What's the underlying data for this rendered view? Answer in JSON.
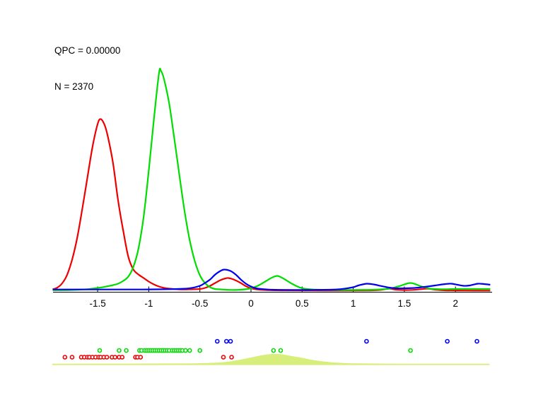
{
  "annotation": {
    "qpc_label": "QPC = 0.00000",
    "n_label": "N = 2370"
  },
  "colors": {
    "red": "#ee0000",
    "green": "#00dd00",
    "blue": "#0000f0",
    "pooled": "#d7ee7b",
    "axis": "#000000",
    "text": "#000000",
    "background": "#ffffff"
  },
  "chart_data": {
    "type": "line",
    "title": "",
    "xlabel": "",
    "ylabel": "",
    "x_range": [
      -1.94,
      2.37
    ],
    "grid": false,
    "legend": "none",
    "y_unit": "relative density height (pixels above baseline as rendered)",
    "x_axis": {
      "ticks": [
        {
          "value": -1.5,
          "label": "-1.5"
        },
        {
          "value": -1.0,
          "label": "-1"
        },
        {
          "value": -0.5,
          "label": "-0.5"
        },
        {
          "value": 0.0,
          "label": "0"
        },
        {
          "value": 0.5,
          "label": "0.5"
        },
        {
          "value": 1.0,
          "label": "1"
        },
        {
          "value": 1.5,
          "label": "1.5"
        },
        {
          "value": 2.0,
          "label": "2"
        }
      ]
    },
    "series": [
      {
        "name": "red-class-density",
        "color": "red",
        "points": [
          [
            -1.94,
            2
          ],
          [
            -1.9,
            4
          ],
          [
            -1.85,
            10
          ],
          [
            -1.8,
            22
          ],
          [
            -1.75,
            44
          ],
          [
            -1.7,
            75
          ],
          [
            -1.65,
            116
          ],
          [
            -1.6,
            160
          ],
          [
            -1.55,
            204
          ],
          [
            -1.5,
            236
          ],
          [
            -1.47,
            243
          ],
          [
            -1.43,
            234
          ],
          [
            -1.4,
            218
          ],
          [
            -1.35,
            181
          ],
          [
            -1.3,
            128
          ],
          [
            -1.25,
            85
          ],
          [
            -1.2,
            48
          ],
          [
            -1.15,
            30
          ],
          [
            -1.1,
            23
          ],
          [
            -1.05,
            18
          ],
          [
            -1,
            13
          ],
          [
            -0.95,
            9
          ],
          [
            -0.9,
            6
          ],
          [
            -0.85,
            4
          ],
          [
            -0.8,
            3
          ],
          [
            -0.7,
            2
          ],
          [
            -0.6,
            2
          ],
          [
            -0.5,
            2.5
          ],
          [
            -0.45,
            4
          ],
          [
            -0.4,
            7
          ],
          [
            -0.35,
            11
          ],
          [
            -0.3,
            15
          ],
          [
            -0.25,
            17.5
          ],
          [
            -0.22,
            18
          ],
          [
            -0.17,
            16
          ],
          [
            -0.1,
            11
          ],
          [
            -0.05,
            6.5
          ],
          [
            0,
            3.5
          ],
          [
            0.05,
            2
          ],
          [
            0.15,
            1
          ],
          [
            0.3,
            0.5
          ],
          [
            0.6,
            0.3
          ],
          [
            1,
            0.3
          ],
          [
            1.2,
            0.6
          ],
          [
            1.28,
            1.5
          ],
          [
            1.35,
            3
          ],
          [
            1.42,
            1.5
          ],
          [
            1.5,
            1
          ],
          [
            1.58,
            1.2
          ],
          [
            1.66,
            2.2
          ],
          [
            1.73,
            3
          ],
          [
            1.8,
            1.5
          ],
          [
            1.9,
            0.5
          ],
          [
            2.1,
            0.3
          ],
          [
            2.34,
            0.2
          ]
        ]
      },
      {
        "name": "green-class-density",
        "color": "green",
        "points": [
          [
            -1.94,
            0.8
          ],
          [
            -1.8,
            1
          ],
          [
            -1.7,
            1.5
          ],
          [
            -1.6,
            2.2
          ],
          [
            -1.5,
            4
          ],
          [
            -1.45,
            5
          ],
          [
            -1.4,
            6.5
          ],
          [
            -1.35,
            8
          ],
          [
            -1.3,
            10
          ],
          [
            -1.25,
            14
          ],
          [
            -1.2,
            20
          ],
          [
            -1.15,
            34
          ],
          [
            -1.1,
            60
          ],
          [
            -1.05,
            105
          ],
          [
            -1,
            170
          ],
          [
            -0.95,
            242
          ],
          [
            -0.9,
            308
          ],
          [
            -0.88,
            311
          ],
          [
            -0.85,
            299
          ],
          [
            -0.8,
            265
          ],
          [
            -0.75,
            215
          ],
          [
            -0.7,
            163
          ],
          [
            -0.65,
            113
          ],
          [
            -0.6,
            72
          ],
          [
            -0.55,
            42
          ],
          [
            -0.5,
            22
          ],
          [
            -0.45,
            11
          ],
          [
            -0.4,
            5
          ],
          [
            -0.35,
            2.5
          ],
          [
            -0.3,
            2
          ],
          [
            -0.2,
            1.2
          ],
          [
            -0.1,
            1.5
          ],
          [
            0,
            3.5
          ],
          [
            0.08,
            8
          ],
          [
            0.15,
            14
          ],
          [
            0.21,
            19
          ],
          [
            0.26,
            21
          ],
          [
            0.32,
            17
          ],
          [
            0.4,
            10
          ],
          [
            0.48,
            4.5
          ],
          [
            0.55,
            2.5
          ],
          [
            0.65,
            1.5
          ],
          [
            0.8,
            1.2
          ],
          [
            1,
            1.2
          ],
          [
            1.2,
            1.5
          ],
          [
            1.35,
            3
          ],
          [
            1.45,
            6.5
          ],
          [
            1.56,
            11
          ],
          [
            1.66,
            6.5
          ],
          [
            1.75,
            3
          ],
          [
            1.85,
            2.2
          ],
          [
            2,
            2.5
          ],
          [
            2.2,
            2.5
          ],
          [
            2.34,
            2.5
          ]
        ]
      },
      {
        "name": "blue-class-density",
        "color": "blue",
        "points": [
          [
            -1.94,
            1.8
          ],
          [
            -1.5,
            1.8
          ],
          [
            -1.2,
            1.8
          ],
          [
            -1,
            1.9
          ],
          [
            -0.8,
            2.2
          ],
          [
            -0.7,
            2.6
          ],
          [
            -0.6,
            3.5
          ],
          [
            -0.5,
            7
          ],
          [
            -0.45,
            11
          ],
          [
            -0.4,
            16
          ],
          [
            -0.35,
            23
          ],
          [
            -0.3,
            28
          ],
          [
            -0.26,
            30
          ],
          [
            -0.2,
            28
          ],
          [
            -0.15,
            23
          ],
          [
            -0.1,
            16
          ],
          [
            -0.05,
            10
          ],
          [
            0,
            6
          ],
          [
            0.05,
            3.5
          ],
          [
            0.1,
            2.5
          ],
          [
            0.2,
            1.5
          ],
          [
            0.4,
            1.2
          ],
          [
            0.6,
            1.2
          ],
          [
            0.8,
            1.6
          ],
          [
            0.9,
            2.6
          ],
          [
            1,
            5
          ],
          [
            1.05,
            7.5
          ],
          [
            1.13,
            10
          ],
          [
            1.2,
            9
          ],
          [
            1.28,
            6.5
          ],
          [
            1.35,
            4.5
          ],
          [
            1.42,
            3.5
          ],
          [
            1.5,
            3.5
          ],
          [
            1.6,
            4
          ],
          [
            1.7,
            5.5
          ],
          [
            1.8,
            7.5
          ],
          [
            1.9,
            9.5
          ],
          [
            1.96,
            10
          ],
          [
            2.02,
            8.5
          ],
          [
            2.08,
            7
          ],
          [
            2.14,
            7.5
          ],
          [
            2.22,
            10
          ],
          [
            2.28,
            9.5
          ],
          [
            2.34,
            8.5
          ]
        ]
      }
    ],
    "rug": [
      {
        "name": "blue-class-points",
        "color": "blue",
        "values": [
          -0.33,
          -0.24,
          -0.2,
          1.13,
          1.92,
          2.21
        ]
      },
      {
        "name": "green-class-points",
        "color": "green",
        "values": [
          -1.48,
          -1.29,
          -1.22,
          -1.09,
          -1.07,
          -1.04,
          -1.02,
          -1,
          -0.98,
          -0.96,
          -0.94,
          -0.92,
          -0.9,
          -0.88,
          -0.86,
          -0.84,
          -0.82,
          -0.8,
          -0.77,
          -0.75,
          -0.73,
          -0.71,
          -0.69,
          -0.67,
          -0.64,
          -0.6,
          -0.5,
          0.22,
          0.29,
          1.56
        ]
      },
      {
        "name": "red-class-points",
        "color": "red",
        "values": [
          -1.82,
          -1.75,
          -1.66,
          -1.63,
          -1.6,
          -1.58,
          -1.55,
          -1.52,
          -1.49,
          -1.47,
          -1.44,
          -1.41,
          -1.36,
          -1.33,
          -1.29,
          -1.26,
          -1.13,
          -1.11,
          -1.08,
          -0.27,
          -0.19
        ]
      }
    ],
    "bottom_density": {
      "name": "pooled-density",
      "color": "pooled",
      "points": [
        [
          -1.94,
          0.7
        ],
        [
          -1.2,
          0.8
        ],
        [
          -0.8,
          1
        ],
        [
          -0.55,
          1.2
        ],
        [
          -0.4,
          1.8
        ],
        [
          -0.3,
          2.5
        ],
        [
          -0.2,
          4
        ],
        [
          -0.1,
          6.5
        ],
        [
          0,
          9.5
        ],
        [
          0.1,
          12.5
        ],
        [
          0.18,
          14.2
        ],
        [
          0.25,
          14.5
        ],
        [
          0.32,
          13.5
        ],
        [
          0.4,
          11.5
        ],
        [
          0.5,
          9
        ],
        [
          0.6,
          6
        ],
        [
          0.7,
          4
        ],
        [
          0.8,
          2.5
        ],
        [
          0.9,
          1.7
        ],
        [
          1,
          1.2
        ],
        [
          1.2,
          0.9
        ],
        [
          1.5,
          0.7
        ],
        [
          2,
          0.6
        ],
        [
          2.33,
          0.6
        ]
      ]
    }
  }
}
